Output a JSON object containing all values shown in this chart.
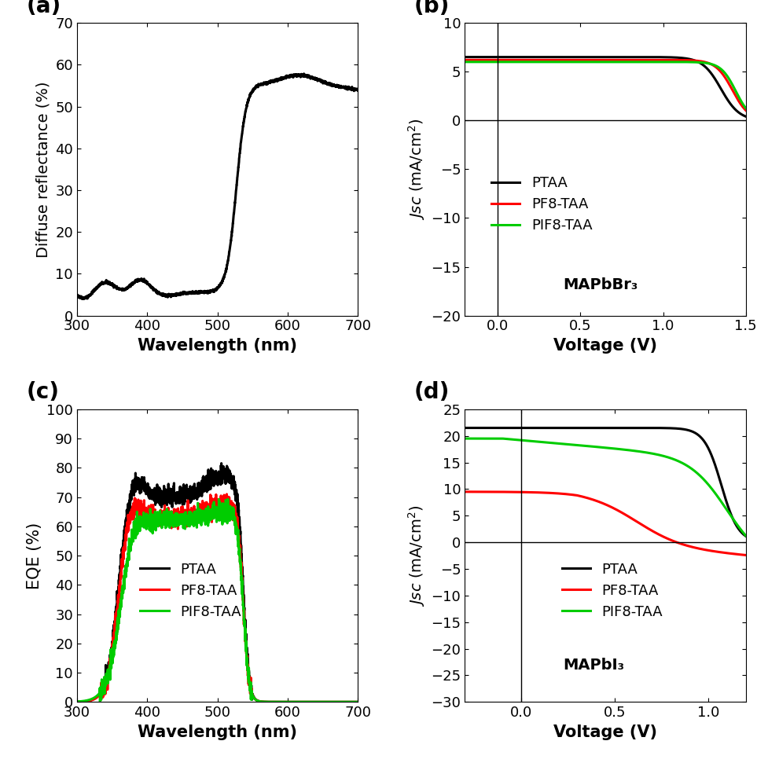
{
  "panel_a": {
    "label": "(a)",
    "xlabel": "Wavelength (nm)",
    "ylabel": "Diffuse reflectance (%)",
    "xlim": [
      300,
      700
    ],
    "ylim": [
      0,
      70
    ],
    "xticks": [
      300,
      400,
      500,
      600,
      700
    ],
    "yticks": [
      0,
      10,
      20,
      30,
      40,
      50,
      60,
      70
    ]
  },
  "panel_b": {
    "label": "(b)",
    "xlabel": "Voltage (V)",
    "ylabel": "Jsc (mA/cm2)",
    "xlim": [
      -0.2,
      1.5
    ],
    "ylim": [
      -20,
      10
    ],
    "xticks": [
      0.0,
      0.5,
      1.0,
      1.5
    ],
    "yticks": [
      -20,
      -15,
      -10,
      -5,
      0,
      5,
      10
    ],
    "annotation": "MAPbBr₃",
    "legend_labels": [
      "PTAA",
      "PF8-TAA",
      "PIF8-TAA"
    ],
    "legend_colors": [
      "#000000",
      "#ff0000",
      "#00cc00"
    ]
  },
  "panel_c": {
    "label": "(c)",
    "xlabel": "Wavelength (nm)",
    "ylabel": "EQE (%)",
    "xlim": [
      300,
      700
    ],
    "ylim": [
      0,
      100
    ],
    "xticks": [
      300,
      400,
      500,
      600,
      700
    ],
    "yticks": [
      0,
      10,
      20,
      30,
      40,
      50,
      60,
      70,
      80,
      90,
      100
    ],
    "legend_labels": [
      "PTAA",
      "PF8-TAA",
      "PIF8-TAA"
    ],
    "legend_colors": [
      "#000000",
      "#ff0000",
      "#00cc00"
    ]
  },
  "panel_d": {
    "label": "(d)",
    "xlabel": "Voltage (V)",
    "ylabel": "Jsc (mA/cm2)",
    "xlim": [
      -0.3,
      1.2
    ],
    "ylim": [
      -30,
      25
    ],
    "xticks": [
      0.0,
      0.5,
      1.0
    ],
    "yticks": [
      -30,
      -25,
      -20,
      -15,
      -10,
      -5,
      0,
      5,
      10,
      15,
      20,
      25
    ],
    "annotation": "MAPbI₃",
    "legend_labels": [
      "PTAA",
      "PF8-TAA",
      "PIF8-TAA"
    ],
    "legend_colors": [
      "#000000",
      "#ff0000",
      "#00cc00"
    ]
  },
  "fig_bg": "#ffffff",
  "line_width": 2.2
}
